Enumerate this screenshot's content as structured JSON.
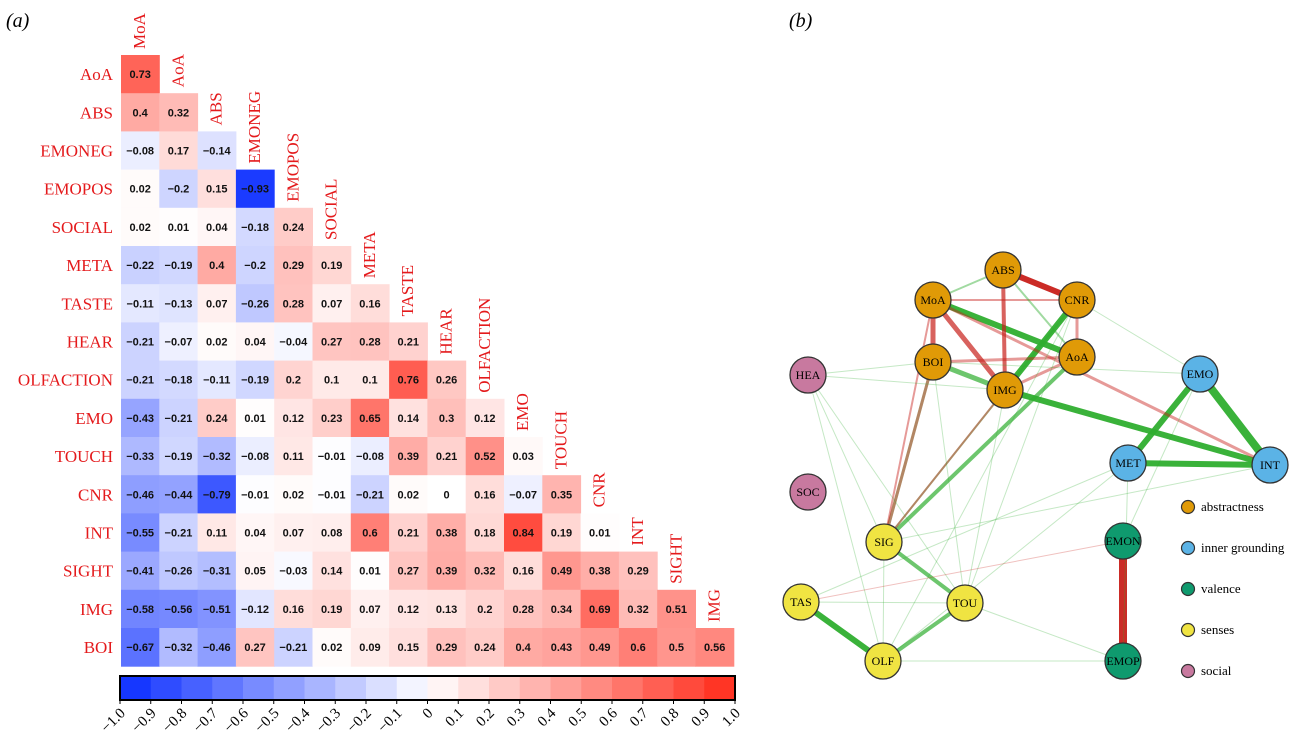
{
  "panels": {
    "a": "(a)",
    "b": "(b)"
  },
  "chart_data": [
    {
      "type": "heatmap",
      "row_labels": [
        "AoA",
        "ABS",
        "EMONEG",
        "EMOPOS",
        "SOCIAL",
        "META",
        "TASTE",
        "HEAR",
        "OLFACTION",
        "EMO",
        "TOUCH",
        "CNR",
        "INT",
        "SIGHT",
        "IMG",
        "BOI"
      ],
      "col_labels": [
        "MoA",
        "AoA",
        "ABS",
        "EMONEG",
        "EMOPOS",
        "SOCIAL",
        "META",
        "TASTE",
        "HEAR",
        "OLFACTION",
        "EMO",
        "TOUCH",
        "CNR",
        "INT",
        "SIGHT",
        "IMG"
      ],
      "values": [
        [
          "0.73"
        ],
        [
          "0.4",
          "0.32"
        ],
        [
          "−0.08",
          "0.17",
          "−0.14"
        ],
        [
          "0.02",
          "−0.2",
          "0.15",
          "−0.93"
        ],
        [
          "0.02",
          "0.01",
          "0.04",
          "−0.18",
          "0.24"
        ],
        [
          "−0.22",
          "−0.19",
          "0.4",
          "−0.2",
          "0.29",
          "0.19"
        ],
        [
          "−0.11",
          "−0.13",
          "0.07",
          "−0.26",
          "0.28",
          "0.07",
          "0.16"
        ],
        [
          "−0.21",
          "−0.07",
          "0.02",
          "0.04",
          "−0.04",
          "0.27",
          "0.28",
          "0.21"
        ],
        [
          "−0.21",
          "−0.18",
          "−0.11",
          "−0.19",
          "0.2",
          "0.1",
          "0.1",
          "0.76",
          "0.26"
        ],
        [
          "−0.43",
          "−0.21",
          "0.24",
          "0.01",
          "0.12",
          "0.23",
          "0.65",
          "0.14",
          "0.3",
          "0.12"
        ],
        [
          "−0.33",
          "−0.19",
          "−0.32",
          "−0.08",
          "0.11",
          "−0.01",
          "−0.08",
          "0.39",
          "0.21",
          "0.52",
          "0.03"
        ],
        [
          "−0.46",
          "−0.44",
          "−0.79",
          "−0.01",
          "0.02",
          "−0.01",
          "−0.21",
          "0.02",
          "0",
          "0.16",
          "−0.07",
          "0.35"
        ],
        [
          "−0.55",
          "−0.21",
          "0.11",
          "0.04",
          "0.07",
          "0.08",
          "0.6",
          "0.21",
          "0.38",
          "0.18",
          "0.84",
          "0.19",
          "0.01"
        ],
        [
          "−0.41",
          "−0.26",
          "−0.31",
          "0.05",
          "−0.03",
          "0.14",
          "0.01",
          "0.27",
          "0.39",
          "0.32",
          "0.16",
          "0.49",
          "0.38",
          "0.29"
        ],
        [
          "−0.58",
          "−0.56",
          "−0.51",
          "−0.12",
          "0.16",
          "0.19",
          "0.07",
          "0.12",
          "0.13",
          "0.2",
          "0.28",
          "0.34",
          "0.69",
          "0.32",
          "0.51"
        ],
        [
          "−0.67",
          "−0.32",
          "−0.46",
          "0.27",
          "−0.21",
          "0.02",
          "0.09",
          "0.15",
          "0.29",
          "0.24",
          "0.4",
          "0.43",
          "0.49",
          "0.6",
          "0.5",
          "0.56"
        ]
      ],
      "colorbar": {
        "range": [
          -1.0,
          1.0
        ],
        "ticks": [
          "−1.0",
          "−0.9",
          "−0.8",
          "−0.7",
          "−0.6",
          "−0.5",
          "−0.4",
          "−0.3",
          "−0.2",
          "−0.1",
          "0",
          "0.1",
          "0.2",
          "0.3",
          "0.4",
          "0.5",
          "0.6",
          "0.7",
          "0.8",
          "0.9",
          "1.0"
        ],
        "low_color": "#0a2cff",
        "mid_color": "#ffffff",
        "high_color": "#ff2a1a"
      }
    },
    {
      "type": "network",
      "nodes": [
        {
          "id": "ABS",
          "group": "abstractness"
        },
        {
          "id": "MoA",
          "group": "abstractness"
        },
        {
          "id": "CNR",
          "group": "abstractness"
        },
        {
          "id": "BOI",
          "group": "abstractness"
        },
        {
          "id": "AoA",
          "group": "abstractness"
        },
        {
          "id": "IMG",
          "group": "abstractness"
        },
        {
          "id": "HEA",
          "group": "social"
        },
        {
          "id": "EMO",
          "group": "inner grounding"
        },
        {
          "id": "MET",
          "group": "inner grounding"
        },
        {
          "id": "INT",
          "group": "inner grounding"
        },
        {
          "id": "SOC",
          "group": "social"
        },
        {
          "id": "SIG",
          "group": "senses"
        },
        {
          "id": "EMON",
          "group": "valence"
        },
        {
          "id": "TAS",
          "group": "senses"
        },
        {
          "id": "TOU",
          "group": "senses"
        },
        {
          "id": "OLF",
          "group": "senses"
        },
        {
          "id": "EMOP",
          "group": "valence"
        }
      ],
      "edges": [
        {
          "a": "ABS",
          "b": "CNR",
          "sign": "neg",
          "w": 6
        },
        {
          "a": "EMON",
          "b": "EMOP",
          "sign": "neg",
          "w": 8
        },
        {
          "a": "EMO",
          "b": "INT",
          "sign": "pos",
          "w": 8
        },
        {
          "a": "EMO",
          "b": "MET",
          "sign": "pos",
          "w": 6
        },
        {
          "a": "MET",
          "b": "INT",
          "sign": "pos",
          "w": 6
        },
        {
          "a": "IMG",
          "b": "INT",
          "sign": "pos",
          "w": 6
        },
        {
          "a": "IMG",
          "b": "CNR",
          "sign": "pos",
          "w": 6
        },
        {
          "a": "MoA",
          "b": "AoA",
          "sign": "pos",
          "w": 6
        },
        {
          "a": "BOI",
          "b": "IMG",
          "sign": "pos",
          "w": 5
        },
        {
          "a": "TAS",
          "b": "OLF",
          "sign": "pos",
          "w": 6
        },
        {
          "a": "TOU",
          "b": "OLF",
          "sign": "pos",
          "w": 4
        },
        {
          "a": "SIG",
          "b": "TOU",
          "sign": "pos",
          "w": 4
        },
        {
          "a": "SIG",
          "b": "AoA",
          "sign": "pos",
          "w": 4
        },
        {
          "a": "SIG",
          "b": "BOI",
          "sign": "pos",
          "w": 3
        },
        {
          "a": "SIG",
          "b": "CNR",
          "sign": "pos",
          "w": 2
        },
        {
          "a": "MoA",
          "b": "BOI",
          "sign": "neg",
          "w": 5
        },
        {
          "a": "MoA",
          "b": "IMG",
          "sign": "neg",
          "w": 5
        },
        {
          "a": "ABS",
          "b": "IMG",
          "sign": "neg",
          "w": 4
        },
        {
          "a": "BOI",
          "b": "AoA",
          "sign": "neg",
          "w": 3
        },
        {
          "a": "MoA",
          "b": "CNR",
          "sign": "neg",
          "w": 2
        },
        {
          "a": "CNR",
          "b": "AoA",
          "sign": "neg",
          "w": 3
        },
        {
          "a": "AoA",
          "b": "IMG",
          "sign": "neg",
          "w": 3
        },
        {
          "a": "MoA",
          "b": "INT",
          "sign": "neg",
          "w": 3
        },
        {
          "a": "BOI",
          "b": "SIG",
          "sign": "neg",
          "w": 3
        },
        {
          "a": "IMG",
          "b": "SIG",
          "sign": "neg",
          "w": 2
        },
        {
          "a": "MoA",
          "b": "SIG",
          "sign": "neg",
          "w": 2
        },
        {
          "a": "MoA",
          "b": "ABS",
          "sign": "pos",
          "w": 2
        },
        {
          "a": "ABS",
          "b": "AoA",
          "sign": "pos",
          "w": 2
        },
        {
          "a": "HEA",
          "b": "IMG",
          "sign": "pos",
          "w": 1
        },
        {
          "a": "HEA",
          "b": "SIG",
          "sign": "pos",
          "w": 1
        },
        {
          "a": "HEA",
          "b": "TOU",
          "sign": "pos",
          "w": 1
        },
        {
          "a": "HEA",
          "b": "OLF",
          "sign": "pos",
          "w": 1
        },
        {
          "a": "HEA",
          "b": "BOI",
          "sign": "pos",
          "w": 1
        },
        {
          "a": "CNR",
          "b": "TOU",
          "sign": "pos",
          "w": 1
        },
        {
          "a": "CNR",
          "b": "OLF",
          "sign": "pos",
          "w": 1
        },
        {
          "a": "IMG",
          "b": "TOU",
          "sign": "pos",
          "w": 1
        },
        {
          "a": "BOI",
          "b": "TOU",
          "sign": "pos",
          "w": 1
        },
        {
          "a": "EMO",
          "b": "BOI",
          "sign": "pos",
          "w": 1
        },
        {
          "a": "MET",
          "b": "TAS",
          "sign": "pos",
          "w": 1
        },
        {
          "a": "MET",
          "b": "OLF",
          "sign": "pos",
          "w": 1
        },
        {
          "a": "INT",
          "b": "SIG",
          "sign": "pos",
          "w": 1
        },
        {
          "a": "SIG",
          "b": "OLF",
          "sign": "pos",
          "w": 1
        },
        {
          "a": "TAS",
          "b": "TOU",
          "sign": "pos",
          "w": 1
        },
        {
          "a": "TAS",
          "b": "EMON",
          "sign": "neg",
          "w": 1
        },
        {
          "a": "OLF",
          "b": "EMOP",
          "sign": "pos",
          "w": 1
        },
        {
          "a": "TOU",
          "b": "EMOP",
          "sign": "pos",
          "w": 1
        },
        {
          "a": "EMO",
          "b": "EMON",
          "sign": "pos",
          "w": 1
        },
        {
          "a": "MET",
          "b": "EMOP",
          "sign": "pos",
          "w": 1
        },
        {
          "a": "CNR",
          "b": "EMO",
          "sign": "pos",
          "w": 1
        }
      ],
      "legend": [
        {
          "label": "abstractness",
          "color": "#e09a07"
        },
        {
          "label": "inner grounding",
          "color": "#5bb3e6"
        },
        {
          "label": "valence",
          "color": "#0f9a6e"
        },
        {
          "label": "senses",
          "color": "#f0e442"
        },
        {
          "label": "social",
          "color": "#c8799f"
        }
      ],
      "edge_colors": {
        "pos": "#2fae2f",
        "neg": "#c8201a"
      }
    }
  ]
}
